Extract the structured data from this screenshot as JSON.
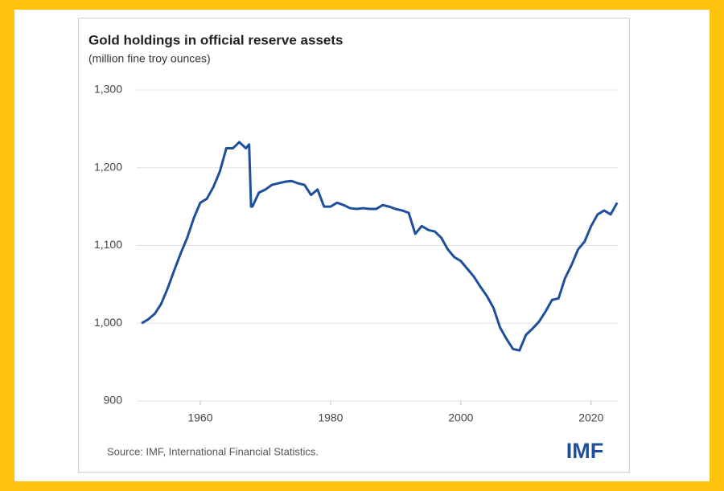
{
  "chart_data": {
    "type": "line",
    "title": "Gold holdings in official reserve assets",
    "subtitle": "(million fine troy ounces)",
    "source": "Source: IMF, International Financial Statistics.",
    "logo": "IMF",
    "x": [
      1951,
      1952,
      1953,
      1954,
      1955,
      1956,
      1957,
      1958,
      1959,
      1960,
      1961,
      1962,
      1963,
      1964,
      1965,
      1966,
      1967,
      1967.5,
      1967.8,
      1968,
      1969,
      1970,
      1971,
      1972,
      1973,
      1974,
      1975,
      1976,
      1977,
      1978,
      1979,
      1980,
      1981,
      1982,
      1983,
      1984,
      1985,
      1986,
      1987,
      1988,
      1989,
      1990,
      1991,
      1992,
      1993,
      1994,
      1995,
      1996,
      1997,
      1998,
      1999,
      2000,
      2001,
      2002,
      2003,
      2004,
      2005,
      2006,
      2007,
      2008,
      2009,
      2010,
      2011,
      2012,
      2013,
      2014,
      2015,
      2016,
      2017,
      2018,
      2019,
      2020,
      2021,
      2022,
      2023,
      2024
    ],
    "series": [
      {
        "name": "Gold holdings",
        "color": "#1f4e9c",
        "values": [
          1000,
          1005,
          1012,
          1025,
          1045,
          1068,
          1090,
          1110,
          1135,
          1155,
          1160,
          1175,
          1195,
          1225,
          1225,
          1233,
          1225,
          1230,
          1150,
          1150,
          1168,
          1172,
          1178,
          1180,
          1182,
          1183,
          1180,
          1178,
          1165,
          1172,
          1150,
          1150,
          1155,
          1152,
          1148,
          1147,
          1148,
          1147,
          1147,
          1152,
          1150,
          1147,
          1145,
          1142,
          1115,
          1125,
          1120,
          1118,
          1110,
          1095,
          1085,
          1080,
          1070,
          1060,
          1047,
          1035,
          1020,
          995,
          980,
          967,
          965,
          985,
          993,
          1002,
          1015,
          1030,
          1032,
          1058,
          1075,
          1095,
          1105,
          1125,
          1140,
          1145,
          1140,
          1155
        ]
      }
    ],
    "xlim": [
      1950.25,
      2024.1
    ],
    "xticks": [
      1960,
      1980,
      2000,
      2020
    ],
    "ylim": [
      900,
      1300
    ],
    "yticks": [
      {
        "value": 900,
        "label": "900"
      },
      {
        "value": 1000,
        "label": "1,000"
      },
      {
        "value": 1100,
        "label": "1,100"
      },
      {
        "value": 1200,
        "label": "1,200"
      },
      {
        "value": 1300,
        "label": "1,300"
      }
    ],
    "grid": true
  }
}
